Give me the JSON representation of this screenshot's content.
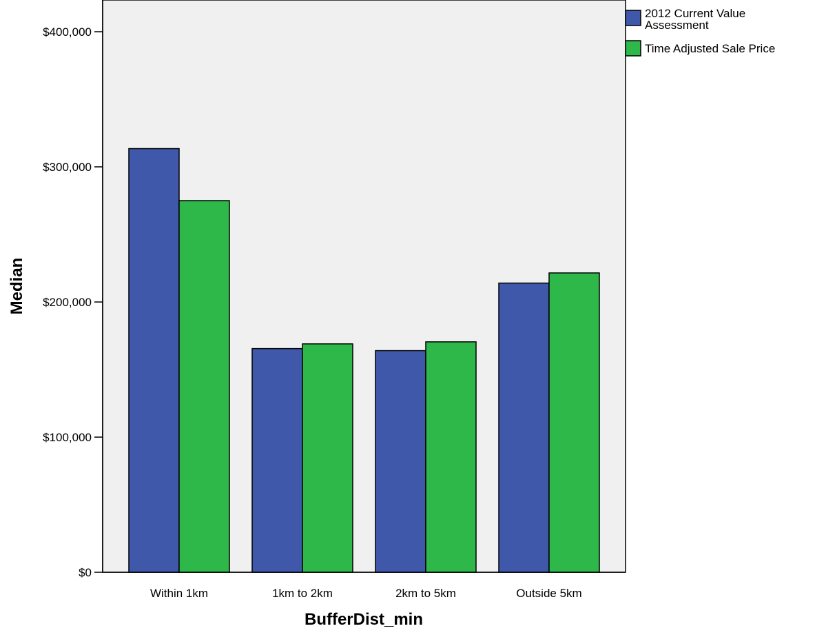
{
  "chart_data": {
    "type": "bar",
    "categories": [
      "Within 1km",
      "1km to 2km",
      "2km to 5km",
      "Outside 5km"
    ],
    "series": [
      {
        "name": "2012 Current Value Assessment",
        "name_lines": [
          "2012 Current Value",
          "Assessment"
        ],
        "values": [
          313500,
          165500,
          164000,
          214000
        ],
        "color": "#3f58a9"
      },
      {
        "name": "Time Adjusted Sale Price",
        "name_lines": [
          "Time Adjusted Sale Price"
        ],
        "values": [
          275000,
          169000,
          170500,
          221500
        ],
        "color": "#2eb84a"
      }
    ],
    "xlabel": "BufferDist_min",
    "ylabel": "Median",
    "ylim": [
      0,
      400000
    ],
    "yticks": [
      0,
      100000,
      200000,
      300000,
      400000
    ],
    "ytick_labels": [
      "$0",
      "$100,000",
      "$200,000",
      "$300,000",
      "$400,000"
    ],
    "grid": false,
    "legend_position": "top-right outside",
    "plot_background": "#f0f0f0"
  }
}
